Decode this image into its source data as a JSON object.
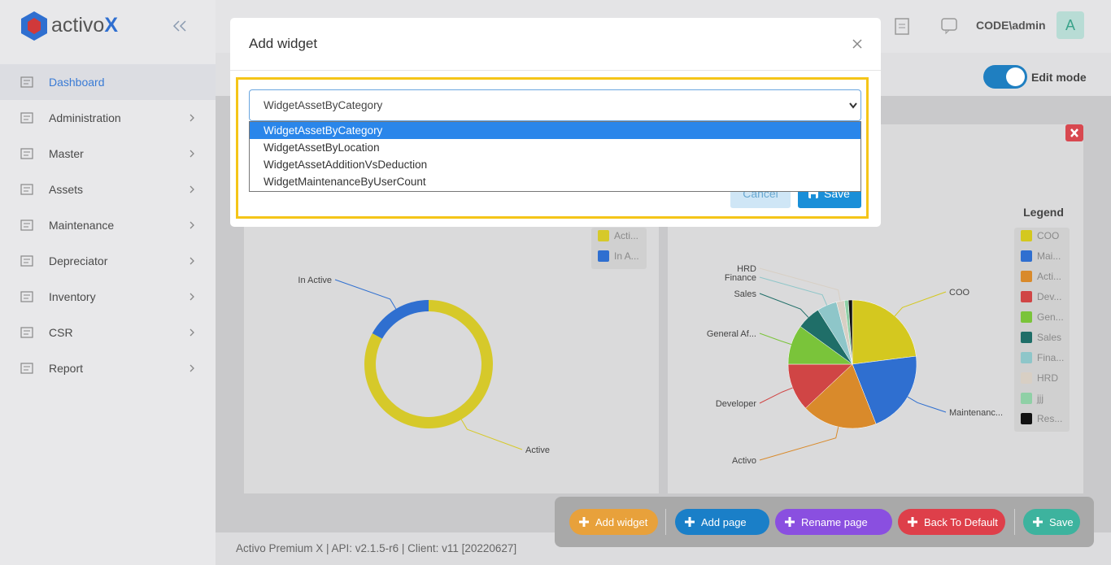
{
  "sidebar": {
    "brand": "activo",
    "brand_mark": "X",
    "nav": [
      "Dashboard",
      "Administration",
      "Master",
      "Assets",
      "Maintenance",
      "Depreciator",
      "Inventory",
      "CSR",
      "Report"
    ]
  },
  "header": {
    "user": "CODE\\admin",
    "avatar": "A",
    "edit_mode": "Edit mode"
  },
  "modal": {
    "title": "Add widget",
    "selected": "WidgetAssetByCategory",
    "options": [
      "WidgetAssetByCategory",
      "WidgetAssetByLocation",
      "WidgetAssetAdditionVsDeduction",
      "WidgetMaintenanceByUserCount"
    ],
    "cancel": "Cancel",
    "save": "Save"
  },
  "toolbar": {
    "buttons": [
      "Add widget",
      "Add page",
      "Rename page",
      "Back To Default",
      "Save"
    ]
  },
  "footer": "Activo Premium X | API: v2.1.5-r6 | Client: v11 [20220627]",
  "chart_data": [
    {
      "type": "donut",
      "categories": [
        "Active",
        "In Active"
      ],
      "legend_labels": [
        "Acti...",
        "In A..."
      ],
      "values": [
        83,
        17
      ],
      "colors": [
        "#d6c92a",
        "#2f6fd0"
      ]
    },
    {
      "type": "pie",
      "legend_title": "Legend",
      "categories": [
        "COO",
        "Maintenanc...",
        "Activo",
        "Developer",
        "General Af...",
        "Sales",
        "Finance",
        "HRD",
        null,
        null
      ],
      "legend_labels": [
        "COO",
        "Mai...",
        "Acti...",
        "Dev...",
        "Gen...",
        "Sales",
        "Fina...",
        "HRD",
        "jjj",
        "Res..."
      ],
      "values": [
        23,
        21,
        19,
        12,
        10,
        6,
        5,
        2,
        1,
        1
      ],
      "colors": [
        "#d4c81f",
        "#2f6fd0",
        "#d98a2b",
        "#d04545",
        "#7ac43a",
        "#1f6e68",
        "#8ec6c9",
        "#d8cfc4",
        "#8fd0a6",
        "#111111"
      ]
    }
  ]
}
